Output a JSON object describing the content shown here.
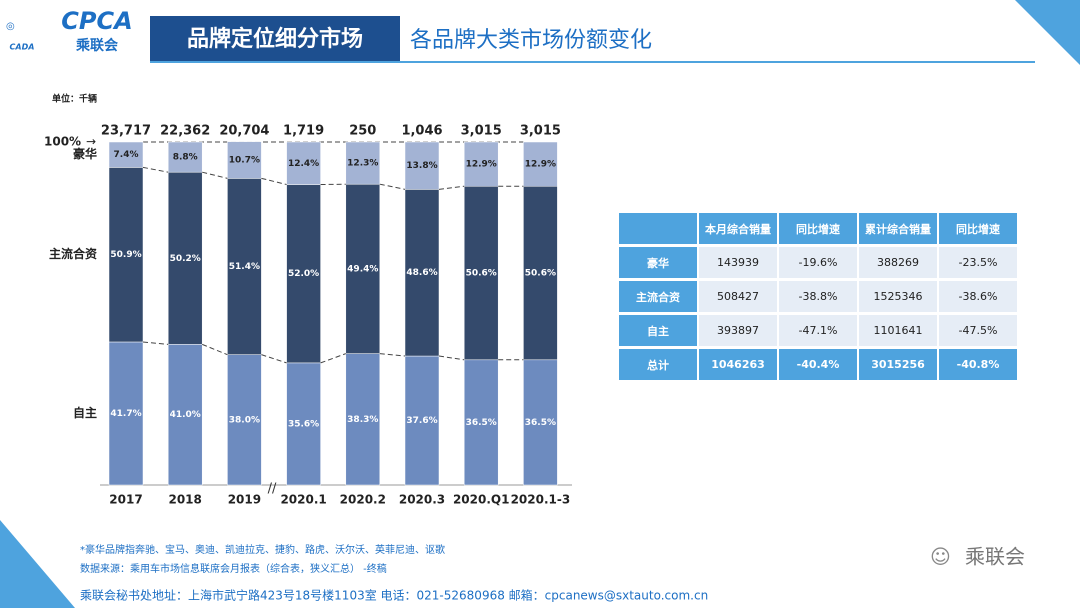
{
  "header": {
    "logo_text": "CPCA",
    "logo_subtext": "乘联会",
    "logo_small": "CADA",
    "title": "品牌定位细分市场",
    "subtitle": "各品牌大类市场份额变化"
  },
  "chart_data": {
    "type": "bar",
    "stacked": true,
    "unit": "单位：千辆",
    "categories": [
      "2017",
      "2018",
      "2019",
      "2020.1",
      "2020.2",
      "2020.3",
      "2020.Q1",
      "2020.1-3"
    ],
    "totals": {
      "values": [
        23717,
        22362,
        20704,
        1719,
        250,
        1046,
        3015,
        3015
      ],
      "value_labels": [
        "23,717",
        "22,362",
        "20,704",
        "1,719",
        "250",
        "1,046",
        "3,015",
        "3,015"
      ]
    },
    "series": [
      {
        "name": "自主",
        "color": "#6d8bbf",
        "values": [
          41.7,
          41.0,
          38.0,
          35.6,
          38.3,
          37.6,
          36.5,
          36.5
        ],
        "value_labels": [
          "41.7%",
          "41.0%",
          "38.0%",
          "35.6%",
          "38.3%",
          "37.6%",
          "36.5%",
          "36.5%"
        ]
      },
      {
        "name": "主流合资",
        "color": "#344a6c",
        "values": [
          50.9,
          50.2,
          51.4,
          52.0,
          49.4,
          48.6,
          50.6,
          50.6
        ],
        "value_labels": [
          "50.9%",
          "50.2%",
          "51.4%",
          "52.0%",
          "49.4%",
          "48.6%",
          "50.6%",
          "50.6%"
        ]
      },
      {
        "name": "豪华",
        "color": "#a3b3d4",
        "values": [
          7.4,
          8.8,
          10.7,
          12.4,
          12.3,
          13.8,
          12.9,
          12.9
        ],
        "value_labels": [
          "7.4%",
          "8.8%",
          "10.7%",
          "12.4%",
          "12.3%",
          "13.8%",
          "12.9%",
          "12.9%"
        ]
      }
    ],
    "ylim": [
      0,
      100
    ],
    "yticks": [
      {
        "value": 100,
        "label": "100%"
      }
    ]
  },
  "table": {
    "header": [
      "",
      "本月综合销量",
      "同比增速",
      "累计综合销量",
      "同比增速"
    ],
    "rows": [
      [
        "豪华",
        "143939",
        "-19.6%",
        "388269",
        "-23.5%"
      ],
      [
        "主流合资",
        "508427",
        "-38.8%",
        "1525346",
        "-38.6%"
      ],
      [
        "自主",
        "393897",
        "-47.1%",
        "1101641",
        "-47.5%"
      ],
      [
        "总计",
        "1046263",
        "-40.4%",
        "3015256",
        "-40.8%"
      ]
    ]
  },
  "notes": [
    "*豪华品牌指奔驰、宝马、奥迪、凯迪拉克、捷豹、路虎、沃尔沃、英菲尼迪、讴歌",
    "数据来源：乘用车市场信息联席会月报表（综合表，狭义汇总）  -终稿"
  ],
  "footer": "乘联会秘书处地址：上海市武宁路423号18号楼1103室  电话：021-52680968   邮箱：cpcanews@sxtauto.com.cn",
  "watermark": "乘联会"
}
